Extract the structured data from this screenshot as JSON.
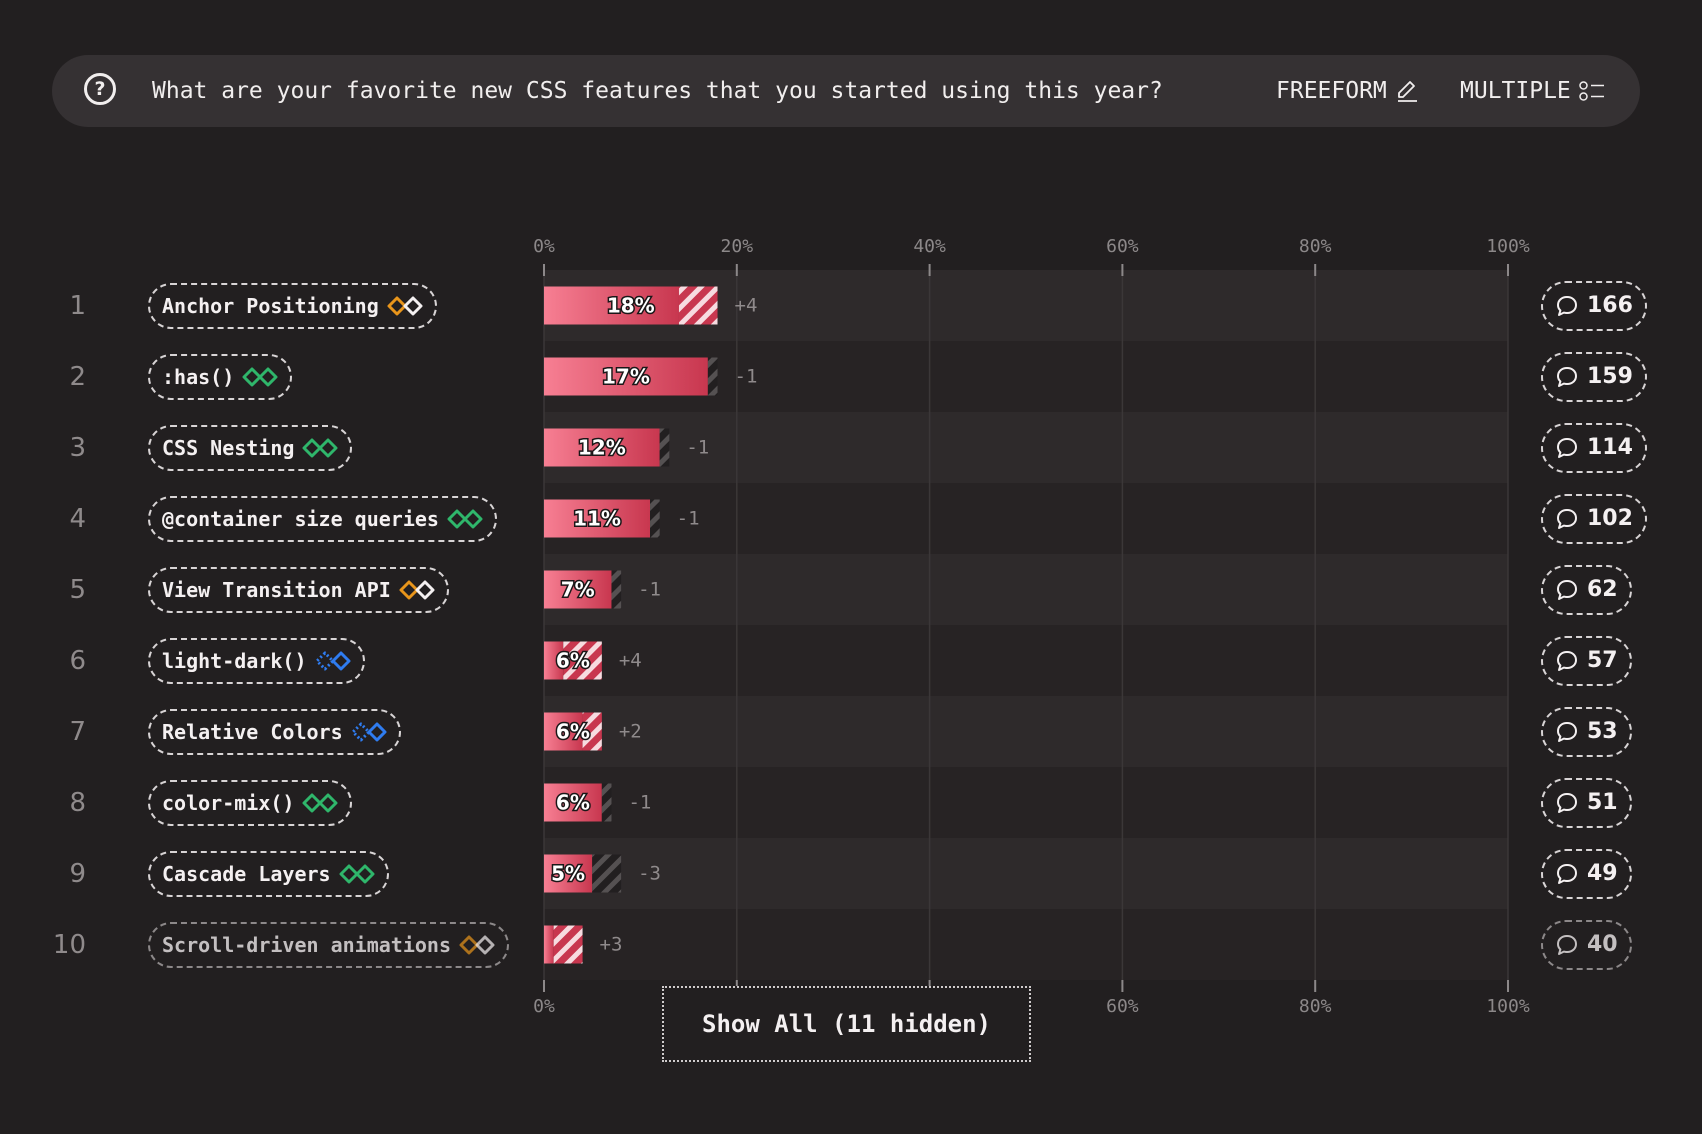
{
  "question": {
    "text": "What are your favorite new CSS features that you started using this year?",
    "modes": [
      {
        "label": "FREEFORM",
        "icon": "pencil-icon"
      },
      {
        "label": "MULTIPLE",
        "icon": "checklist-icon"
      }
    ]
  },
  "chart_data": {
    "type": "bar",
    "orientation": "horizontal",
    "xlim": [
      0,
      100
    ],
    "x_ticks": [
      "0%",
      "20%",
      "40%",
      "60%",
      "80%",
      "100%"
    ],
    "grid": true,
    "rows": [
      {
        "rank": "1",
        "label": "Anchor Positioning",
        "baseline": "limited",
        "value": 18,
        "value_label": "18%",
        "change": 4,
        "change_label": "+4",
        "count": "166"
      },
      {
        "rank": "2",
        "label": ":has()",
        "baseline": "widely",
        "value": 17,
        "value_label": "17%",
        "change": -1,
        "change_label": "-1",
        "count": "159"
      },
      {
        "rank": "3",
        "label": "CSS Nesting",
        "baseline": "widely",
        "value": 12,
        "value_label": "12%",
        "change": -1,
        "change_label": "-1",
        "count": "114"
      },
      {
        "rank": "4",
        "label": "@container size queries",
        "baseline": "widely",
        "value": 11,
        "value_label": "11%",
        "change": -1,
        "change_label": "-1",
        "count": "102"
      },
      {
        "rank": "5",
        "label": "View Transition API",
        "baseline": "limited",
        "value": 7,
        "value_label": "7%",
        "change": -1,
        "change_label": "-1",
        "count": "62"
      },
      {
        "rank": "6",
        "label": "light-dark()",
        "baseline": "newly",
        "value": 6,
        "value_label": "6%",
        "change": 4,
        "change_label": "+4",
        "count": "57"
      },
      {
        "rank": "7",
        "label": "Relative Colors",
        "baseline": "newly",
        "value": 6,
        "value_label": "6%",
        "change": 2,
        "change_label": "+2",
        "count": "53"
      },
      {
        "rank": "8",
        "label": "color-mix()",
        "baseline": "widely",
        "value": 6,
        "value_label": "6%",
        "change": -1,
        "change_label": "-1",
        "count": "51"
      },
      {
        "rank": "9",
        "label": "Cascade Layers",
        "baseline": "widely",
        "value": 5,
        "value_label": "5%",
        "change": -3,
        "change_label": "-3",
        "count": "49"
      },
      {
        "rank": "10",
        "label": "Scroll-driven animations",
        "baseline": "limited",
        "value": 4,
        "value_label": "",
        "change": 3,
        "change_label": "+3",
        "count": "40",
        "dim": true
      }
    ]
  },
  "colors": {
    "background": "#221f20",
    "band_even": "#2e2a2b",
    "band_odd": "#272324",
    "bar_start": "#f77f93",
    "bar_end": "#c8374f",
    "gain_stripe": "#f7dbe0",
    "loss_stripe": "#555152",
    "baseline_widely": "#2fb66b",
    "baseline_newly": "#2f7cf0",
    "baseline_limited": "#e8951b"
  },
  "icons": {
    "help": "question-circle-icon",
    "comment": "speech-bubble-icon"
  },
  "show_all": {
    "label": "Show All (11 hidden)"
  }
}
